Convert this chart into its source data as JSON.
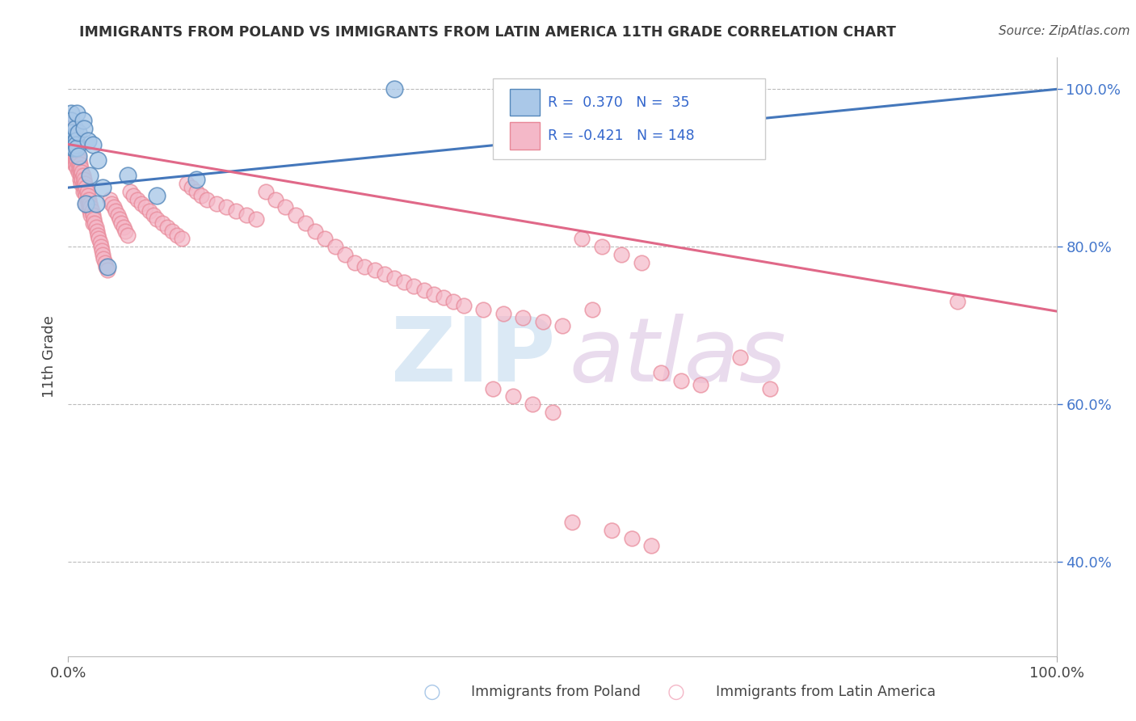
{
  "title": "IMMIGRANTS FROM POLAND VS IMMIGRANTS FROM LATIN AMERICA 11TH GRADE CORRELATION CHART",
  "source": "Source: ZipAtlas.com",
  "ylabel": "11th Grade",
  "legend_label1": "Immigrants from Poland",
  "legend_label2": "Immigrants from Latin America",
  "blue_color": "#aac8e8",
  "blue_edge_color": "#5588bb",
  "blue_line_color": "#4477bb",
  "pink_color": "#f4b8c8",
  "pink_edge_color": "#e88898",
  "pink_line_color": "#e06888",
  "background_color": "#ffffff",
  "watermark_zip_color": "#b8d4ec",
  "watermark_atlas_color": "#d4b8dc",
  "poland_x": [
    0.001,
    0.002,
    0.002,
    0.003,
    0.003,
    0.004,
    0.004,
    0.004,
    0.005,
    0.005,
    0.005,
    0.006,
    0.006,
    0.007,
    0.007,
    0.008,
    0.008,
    0.009,
    0.009,
    0.01,
    0.01,
    0.015,
    0.016,
    0.018,
    0.02,
    0.022,
    0.025,
    0.028,
    0.03,
    0.035,
    0.04,
    0.06,
    0.09,
    0.13,
    0.33
  ],
  "poland_y": [
    0.94,
    0.935,
    0.93,
    0.97,
    0.96,
    0.945,
    0.94,
    0.935,
    0.935,
    0.93,
    0.925,
    0.94,
    0.925,
    0.935,
    0.95,
    0.935,
    0.93,
    0.925,
    0.97,
    0.915,
    0.945,
    0.96,
    0.95,
    0.855,
    0.935,
    0.89,
    0.93,
    0.855,
    0.91,
    0.875,
    0.775,
    0.89,
    0.865,
    0.885,
    1.0
  ],
  "latin_x": [
    0.001,
    0.001,
    0.001,
    0.002,
    0.002,
    0.002,
    0.002,
    0.003,
    0.003,
    0.003,
    0.003,
    0.003,
    0.004,
    0.004,
    0.004,
    0.005,
    0.005,
    0.005,
    0.005,
    0.006,
    0.006,
    0.006,
    0.006,
    0.007,
    0.007,
    0.007,
    0.008,
    0.008,
    0.008,
    0.009,
    0.009,
    0.009,
    0.01,
    0.01,
    0.01,
    0.011,
    0.011,
    0.012,
    0.012,
    0.012,
    0.013,
    0.013,
    0.013,
    0.014,
    0.014,
    0.015,
    0.015,
    0.015,
    0.016,
    0.016,
    0.017,
    0.017,
    0.018,
    0.018,
    0.018,
    0.019,
    0.019,
    0.02,
    0.02,
    0.021,
    0.021,
    0.022,
    0.022,
    0.023,
    0.023,
    0.024,
    0.025,
    0.025,
    0.026,
    0.027,
    0.028,
    0.029,
    0.03,
    0.031,
    0.032,
    0.033,
    0.034,
    0.035,
    0.036,
    0.037,
    0.038,
    0.04,
    0.042,
    0.044,
    0.046,
    0.048,
    0.05,
    0.052,
    0.054,
    0.056,
    0.058,
    0.06,
    0.063,
    0.066,
    0.07,
    0.074,
    0.078,
    0.082,
    0.086,
    0.09,
    0.095,
    0.1,
    0.105,
    0.11,
    0.115,
    0.12,
    0.125,
    0.13,
    0.135,
    0.14,
    0.15,
    0.16,
    0.17,
    0.18,
    0.19,
    0.2,
    0.21,
    0.22,
    0.23,
    0.24,
    0.25,
    0.26,
    0.27,
    0.28,
    0.29,
    0.3,
    0.31,
    0.32,
    0.33,
    0.34,
    0.35,
    0.36,
    0.37,
    0.38,
    0.39,
    0.4,
    0.42,
    0.44,
    0.46,
    0.48,
    0.5,
    0.52,
    0.54,
    0.56,
    0.58,
    0.6,
    0.62,
    0.64,
    0.9,
    0.53,
    0.51,
    0.55,
    0.57,
    0.59,
    0.43,
    0.45,
    0.47,
    0.49,
    0.68,
    0.71
  ],
  "latin_y": [
    0.955,
    0.945,
    0.935,
    0.955,
    0.945,
    0.935,
    0.925,
    0.95,
    0.94,
    0.93,
    0.92,
    0.91,
    0.945,
    0.935,
    0.925,
    0.94,
    0.93,
    0.92,
    0.91,
    0.935,
    0.925,
    0.915,
    0.905,
    0.93,
    0.92,
    0.91,
    0.925,
    0.915,
    0.905,
    0.92,
    0.91,
    0.9,
    0.915,
    0.905,
    0.895,
    0.91,
    0.9,
    0.905,
    0.895,
    0.885,
    0.9,
    0.89,
    0.88,
    0.895,
    0.885,
    0.89,
    0.88,
    0.87,
    0.885,
    0.875,
    0.88,
    0.87,
    0.875,
    0.865,
    0.855,
    0.87,
    0.86,
    0.865,
    0.855,
    0.86,
    0.85,
    0.855,
    0.845,
    0.85,
    0.84,
    0.845,
    0.84,
    0.83,
    0.835,
    0.83,
    0.825,
    0.82,
    0.815,
    0.81,
    0.805,
    0.8,
    0.795,
    0.79,
    0.785,
    0.78,
    0.775,
    0.77,
    0.86,
    0.855,
    0.85,
    0.845,
    0.84,
    0.835,
    0.83,
    0.825,
    0.82,
    0.815,
    0.87,
    0.865,
    0.86,
    0.855,
    0.85,
    0.845,
    0.84,
    0.835,
    0.83,
    0.825,
    0.82,
    0.815,
    0.81,
    0.88,
    0.875,
    0.87,
    0.865,
    0.86,
    0.855,
    0.85,
    0.845,
    0.84,
    0.835,
    0.87,
    0.86,
    0.85,
    0.84,
    0.83,
    0.82,
    0.81,
    0.8,
    0.79,
    0.78,
    0.775,
    0.77,
    0.765,
    0.76,
    0.755,
    0.75,
    0.745,
    0.74,
    0.735,
    0.73,
    0.725,
    0.72,
    0.715,
    0.71,
    0.705,
    0.7,
    0.81,
    0.8,
    0.79,
    0.78,
    0.64,
    0.63,
    0.625,
    0.73,
    0.72,
    0.45,
    0.44,
    0.43,
    0.42,
    0.62,
    0.61,
    0.6,
    0.59,
    0.66,
    0.62
  ],
  "blue_trend_x0": 0.0,
  "blue_trend_y0": 0.875,
  "blue_trend_x1": 1.0,
  "blue_trend_y1": 1.0,
  "pink_trend_x0": 0.0,
  "pink_trend_y0": 0.93,
  "pink_trend_x1": 1.0,
  "pink_trend_y1": 0.718,
  "xmin": 0.0,
  "xmax": 1.0,
  "ymin": 0.28,
  "ymax": 1.04,
  "ytick_positions": [
    1.0,
    0.8,
    0.6,
    0.4
  ],
  "ytick_labels": [
    "100.0%",
    "80.0%",
    "60.0%",
    "40.0%"
  ]
}
